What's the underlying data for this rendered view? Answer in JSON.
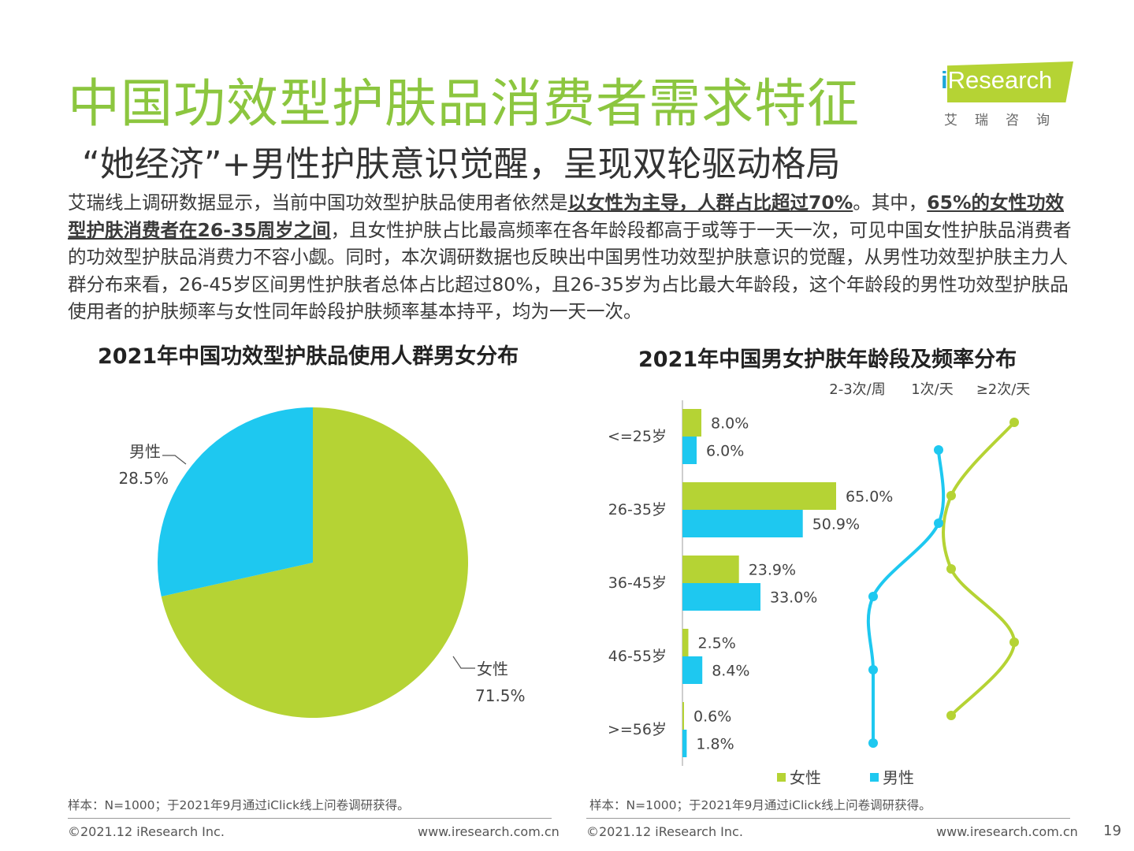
{
  "header": {
    "title": "中国功效型护肤品消费者需求特征",
    "subtitle": "“她经济”+男性护肤意识觉醒，呈现双轮驱动格局",
    "logo_main": "Research",
    "logo_prefix": "i",
    "logo_sub": "艾瑞咨询"
  },
  "paragraph": {
    "p1": "艾瑞线上调研数据显示，当前中国功效型护肤品使用者依然是",
    "b1": "以女性为主导，人群占比超过70%",
    "p2": "。其中，",
    "b2": "65%的女性功效型护肤消费者在26-35周岁之间",
    "p3": "，且女性护肤占比最高频率在各年龄段都高于或等于一天一次，可见中国女性护肤品消费者的功效型护肤品消费力不容小觑。同时，本次调研数据也反映出中国男性功效型护肤意识的觉醒，从男性功效型护肤主力人群分布来看，26-45岁区间男性护肤者总体占比超过80%，且26-35岁为占比最大年龄段，这个年龄段的男性功效型护肤品使用者的护肤频率与女性同年龄段护肤频率基本持平，均为一天一次。"
  },
  "chart_data": [
    {
      "type": "pie",
      "title": "2021年中国功效型护肤品使用人群男女分布",
      "slices": [
        {
          "label": "女性",
          "value": 71.5,
          "value_label": "71.5%",
          "color": "#b5d334"
        },
        {
          "label": "男性",
          "value": 28.5,
          "value_label": "28.5%",
          "color": "#1ec8f0"
        }
      ]
    },
    {
      "type": "bar",
      "orientation": "horizontal",
      "title": "2021年中国男女护肤年龄段及频率分布",
      "categories": [
        "<=25岁",
        "26-35岁",
        "36-45岁",
        "46-55岁",
        ">=56岁"
      ],
      "series": [
        {
          "name": "女性",
          "color": "#b5d334",
          "values": [
            8.0,
            65.0,
            23.9,
            2.5,
            0.6
          ],
          "labels": [
            "8.0%",
            "65.0%",
            "23.9%",
            "2.5%",
            "0.6%"
          ]
        },
        {
          "name": "男性",
          "color": "#1ec8f0",
          "values": [
            6.0,
            50.9,
            33.0,
            8.4,
            1.8
          ],
          "labels": [
            "6.0%",
            "50.9%",
            "33.0%",
            "8.4%",
            "1.8%"
          ]
        }
      ],
      "frequency_axis": [
        "2-3次/周",
        "1次/天",
        "≥2次/天"
      ],
      "frequency": {
        "女性": [
          "≥2次/天",
          "1次/天",
          "1次/天",
          "≥2次/天",
          "1次/天"
        ],
        "男性": [
          "1次/天",
          "1次/天",
          "2-3次/周",
          "2-3次/周",
          "2-3次/周"
        ]
      }
    }
  ],
  "notes": {
    "left": "样本：N=1000；于2021年9月通过iClick线上问卷调研获得。",
    "right": "样本：N=1000；于2021年9月通过iClick线上问卷调研获得。"
  },
  "footer": {
    "copyright_left": "©2021.12 iResearch Inc.",
    "url_left": "www.iresearch.com.cn",
    "copyright_right": "©2021.12 iResearch Inc.",
    "url_right": "www.iresearch.com.cn",
    "page_number": "19"
  }
}
